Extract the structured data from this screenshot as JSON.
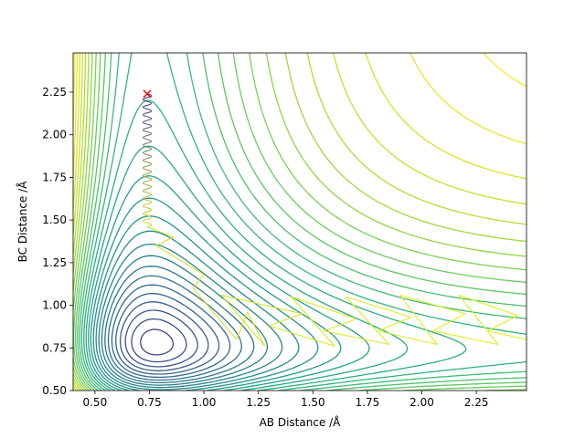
{
  "chart_data": {
    "type": "contour",
    "title": "",
    "xlabel": "AB Distance /Å",
    "ylabel": "BC Distance /Å",
    "xlim": [
      0.4,
      2.48
    ],
    "ylim": [
      0.5,
      2.48
    ],
    "xticks": [
      0.5,
      0.75,
      1.0,
      1.25,
      1.5,
      1.75,
      2.0,
      2.25
    ],
    "xtick_labels": [
      "0.50",
      "0.75",
      "1.00",
      "1.25",
      "1.50",
      "1.75",
      "2.00",
      "2.25"
    ],
    "yticks": [
      0.5,
      0.75,
      1.0,
      1.25,
      1.5,
      1.75,
      2.0,
      2.25
    ],
    "ytick_labels": [
      "0.50",
      "0.75",
      "1.00",
      "1.25",
      "1.50",
      "1.75",
      "2.00",
      "2.25"
    ],
    "colormap": "viridis",
    "grid": false,
    "start_marker": {
      "x": 0.74,
      "y": 2.24,
      "symbol": "x",
      "color": "#ff0000"
    },
    "trajectory_color_start": "#2a2aa0",
    "trajectory_color_end": "#e0f020"
  }
}
